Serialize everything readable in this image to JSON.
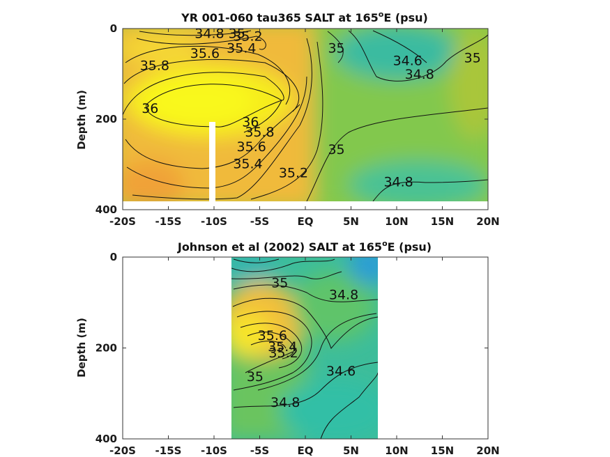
{
  "chart_data": [
    {
      "type": "heatmap",
      "title": "YR 001-060 tau365 SALT at 165",
      "title_sup": "o",
      "title_tail": "E (psu)",
      "ylabel": "Depth (m)",
      "x_tick_labels": [
        "-20S",
        "-15S",
        "-10S",
        "-5S",
        "EQ",
        "5N",
        "10N",
        "15N",
        "20N"
      ],
      "x_ticks": [
        -20,
        -15,
        -10,
        -5,
        0,
        5,
        10,
        15,
        20
      ],
      "y_tick_labels": [
        "0",
        "200",
        "400"
      ],
      "y_ticks": [
        0,
        200,
        400
      ],
      "xlim": [
        -20,
        20
      ],
      "ylim": [
        400,
        0
      ],
      "data_extent_x": [
        -20,
        20
      ],
      "data_extent_y": [
        0,
        380
      ],
      "missing_column_x": -10,
      "missing_column_depth": [
        210,
        400
      ],
      "contour_labels": [
        {
          "text": "34.8",
          "lat": -10.5,
          "depth": 10
        },
        {
          "text": "35",
          "lat": -7.5,
          "depth": 10
        },
        {
          "text": "35.2",
          "lat": -6.3,
          "depth": 16
        },
        {
          "text": "35.4",
          "lat": -7,
          "depth": 42
        },
        {
          "text": "35.6",
          "lat": -11,
          "depth": 54
        },
        {
          "text": "35.8",
          "lat": -16.5,
          "depth": 81
        },
        {
          "text": "36",
          "lat": -17,
          "depth": 175
        },
        {
          "text": "36",
          "lat": -6,
          "depth": 205
        },
        {
          "text": "35.8",
          "lat": -5,
          "depth": 228
        },
        {
          "text": "35.6",
          "lat": -5.9,
          "depth": 260
        },
        {
          "text": "35.4",
          "lat": -6.3,
          "depth": 298
        },
        {
          "text": "35.2",
          "lat": -1.3,
          "depth": 318
        },
        {
          "text": "35",
          "lat": 3.4,
          "depth": 266
        },
        {
          "text": "35",
          "lat": 3.4,
          "depth": 42
        },
        {
          "text": "34.8",
          "lat": 10.2,
          "depth": 338
        },
        {
          "text": "34.6",
          "lat": 11.2,
          "depth": 70
        },
        {
          "text": "34.8",
          "lat": 12.5,
          "depth": 100
        },
        {
          "text": "35",
          "lat": 18.3,
          "depth": 64
        }
      ]
    },
    {
      "type": "heatmap",
      "title": "Johnson et al (2002) SALT at 165",
      "title_sup": "o",
      "title_tail": "E (psu)",
      "ylabel": "Depth (m)",
      "x_tick_labels": [
        "-20S",
        "-15S",
        "-10S",
        "-5S",
        "EQ",
        "5N",
        "10N",
        "15N",
        "20N"
      ],
      "x_ticks": [
        -20,
        -15,
        -10,
        -5,
        0,
        5,
        10,
        15,
        20
      ],
      "y_tick_labels": [
        "0",
        "200",
        "400"
      ],
      "y_ticks": [
        0,
        200,
        400
      ],
      "xlim": [
        -20,
        20
      ],
      "ylim": [
        400,
        0
      ],
      "data_extent_x": [
        -8,
        8
      ],
      "data_extent_y": [
        0,
        400
      ],
      "contour_labels": [
        {
          "text": "35",
          "lat": -2.8,
          "depth": 56
        },
        {
          "text": "34.8",
          "lat": 4.2,
          "depth": 82
        },
        {
          "text": "35.6",
          "lat": -3.6,
          "depth": 172
        },
        {
          "text": "35.4",
          "lat": -2.5,
          "depth": 196
        },
        {
          "text": "35.2",
          "lat": -2.4,
          "depth": 210
        },
        {
          "text": "35",
          "lat": -5.5,
          "depth": 262
        },
        {
          "text": "34.6",
          "lat": 3.9,
          "depth": 250
        },
        {
          "text": "34.8",
          "lat": -2.2,
          "depth": 319
        }
      ]
    }
  ]
}
